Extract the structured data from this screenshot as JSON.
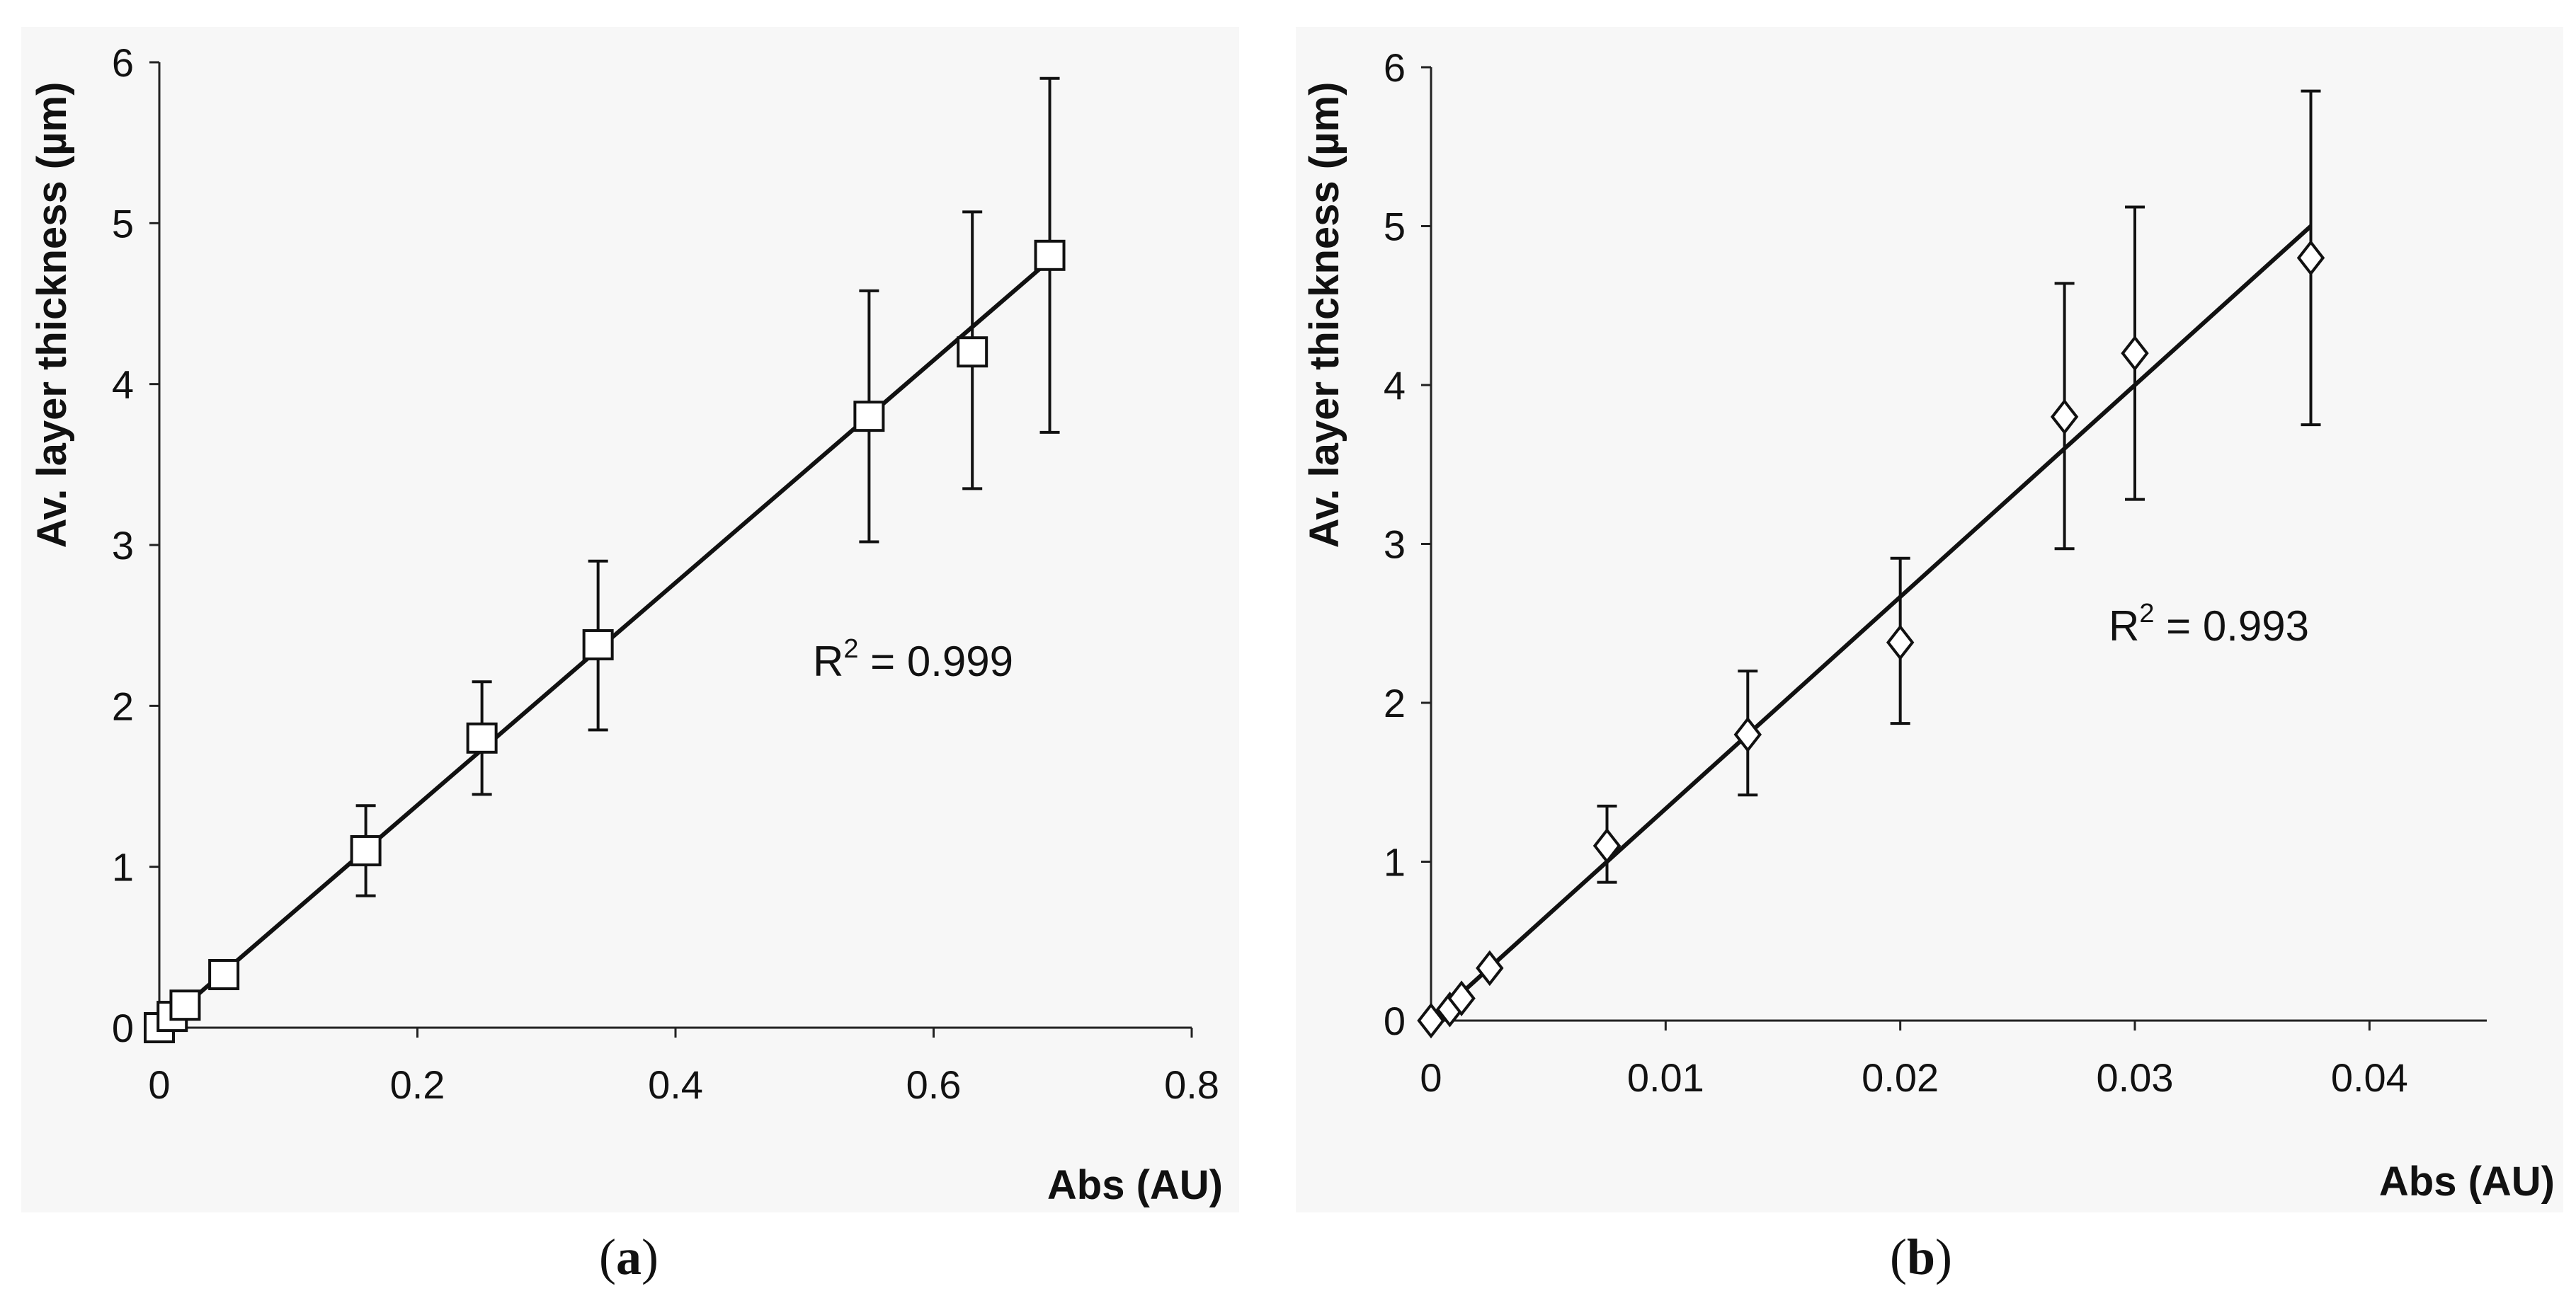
{
  "chart_data": [
    {
      "type": "scatter",
      "panel_label": "a",
      "xlabel": "Abs (AU)",
      "ylabel": "Av. layer thickness (µm)",
      "xlim": [
        0,
        0.8
      ],
      "ylim": [
        0,
        6
      ],
      "xticks": [
        0,
        0.2,
        0.4,
        0.6,
        0.8
      ],
      "xtick_labels": [
        "0",
        "0.2",
        "0.4",
        "0.6",
        "0.8"
      ],
      "yticks": [
        0,
        1,
        2,
        3,
        4,
        5,
        6
      ],
      "ytick_labels": [
        "0",
        "1",
        "2",
        "3",
        "4",
        "5",
        "6"
      ],
      "marker": "square",
      "points": [
        {
          "x": 0.0,
          "y": 0.0
        },
        {
          "x": 0.01,
          "y": 0.07
        },
        {
          "x": 0.02,
          "y": 0.14
        },
        {
          "x": 0.05,
          "y": 0.33
        },
        {
          "x": 0.16,
          "y": 1.1,
          "err_low": 0.82,
          "err_high": 1.38
        },
        {
          "x": 0.25,
          "y": 1.8,
          "err_low": 1.45,
          "err_high": 2.15
        },
        {
          "x": 0.34,
          "y": 2.38,
          "err_low": 1.85,
          "err_high": 2.9
        },
        {
          "x": 0.55,
          "y": 3.8,
          "err_low": 3.02,
          "err_high": 4.58
        },
        {
          "x": 0.63,
          "y": 4.2,
          "err_low": 3.35,
          "err_high": 5.07
        },
        {
          "x": 0.69,
          "y": 4.8,
          "err_low": 3.7,
          "err_high": 5.9
        }
      ],
      "fit_line": {
        "x": [
          0.0,
          0.69
        ],
        "y": [
          0.0,
          4.77
        ]
      },
      "r2_prefix": "R",
      "r2_sup": "2",
      "r2_value": " = 0.999"
    },
    {
      "type": "scatter",
      "panel_label": "b",
      "xlabel": "Abs (AU)",
      "ylabel": "Av. layer thickness (µm)",
      "xlim": [
        0,
        0.045
      ],
      "ylim": [
        0,
        6
      ],
      "xticks": [
        0,
        0.01,
        0.02,
        0.03,
        0.04
      ],
      "xtick_labels": [
        "0",
        "0.01",
        "0.02",
        "0.03",
        "0.04"
      ],
      "yticks": [
        0,
        1,
        2,
        3,
        4,
        5,
        6
      ],
      "ytick_labels": [
        "0",
        "1",
        "2",
        "3",
        "4",
        "5",
        "6"
      ],
      "marker": "diamond",
      "points": [
        {
          "x": 0.0,
          "y": 0.0
        },
        {
          "x": 0.0008,
          "y": 0.07
        },
        {
          "x": 0.0013,
          "y": 0.14
        },
        {
          "x": 0.0025,
          "y": 0.33
        },
        {
          "x": 0.0075,
          "y": 1.1,
          "err_low": 0.87,
          "err_high": 1.35
        },
        {
          "x": 0.0135,
          "y": 1.8,
          "err_low": 1.42,
          "err_high": 2.2
        },
        {
          "x": 0.02,
          "y": 2.38,
          "err_low": 1.87,
          "err_high": 2.91
        },
        {
          "x": 0.027,
          "y": 3.8,
          "err_low": 2.97,
          "err_high": 4.64
        },
        {
          "x": 0.03,
          "y": 4.2,
          "err_low": 3.28,
          "err_high": 5.12
        },
        {
          "x": 0.0375,
          "y": 4.8,
          "err_low": 3.75,
          "err_high": 5.85
        }
      ],
      "fit_line": {
        "x": [
          0.0,
          0.0375
        ],
        "y": [
          0.0,
          5.0
        ]
      },
      "r2_prefix": "R",
      "r2_sup": "2",
      "r2_value": " = 0.993"
    }
  ]
}
